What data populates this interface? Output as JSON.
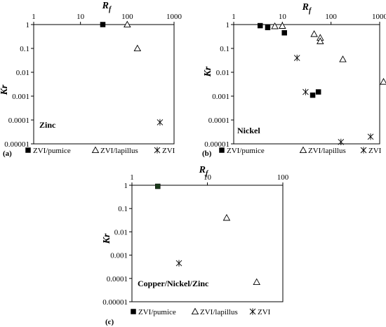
{
  "chart_data": [
    {
      "type": "scatter",
      "panel_label": "(a)",
      "metal_label": "Zinc",
      "xlabel": "R",
      "xlabel_sub": "f",
      "ylabel": "Kr",
      "x_scale": "log",
      "y_scale": "log",
      "xlim": [
        1,
        1000
      ],
      "ylim": [
        1e-05,
        1
      ],
      "x_ticks": [
        "1",
        "10",
        "100",
        "1000"
      ],
      "y_ticks": [
        "1",
        "0.1",
        "0.01",
        "0.001",
        "0.0001",
        "0.00001"
      ],
      "series": [
        {
          "name": "ZVI/pumice",
          "marker": "filled-square",
          "points": [
            [
              30,
              1
            ]
          ]
        },
        {
          "name": "ZVI/lapillus",
          "marker": "open-triangle",
          "points": [
            [
              100,
              1
            ],
            [
              165,
              0.1
            ]
          ]
        },
        {
          "name": "ZVI",
          "marker": "star",
          "points": [
            [
              500,
              8e-05
            ]
          ]
        }
      ]
    },
    {
      "type": "scatter",
      "panel_label": "(b)",
      "metal_label": "Nickel",
      "xlabel": "R",
      "xlabel_sub": "f",
      "ylabel": "Kr",
      "x_scale": "log",
      "y_scale": "log",
      "xlim": [
        1,
        1000
      ],
      "ylim": [
        1e-05,
        1
      ],
      "x_ticks": [
        "1",
        "10",
        "100",
        "1000"
      ],
      "y_ticks": [
        "1",
        "0.1",
        "0.01",
        "0.001",
        "0.0001",
        "0.00001"
      ],
      "series": [
        {
          "name": "ZVI/pumice",
          "marker": "filled-square",
          "points": [
            [
              3.5,
              0.9
            ],
            [
              5,
              0.75
            ],
            [
              11,
              0.45
            ],
            [
              42,
              0.0011
            ],
            [
              55,
              0.0015
            ]
          ]
        },
        {
          "name": "ZVI/lapillus",
          "marker": "open-triangle",
          "points": [
            [
              7,
              0.85
            ],
            [
              10,
              0.88
            ],
            [
              45,
              0.4
            ],
            [
              60,
              0.28
            ],
            [
              60,
              0.2
            ],
            [
              175,
              0.035
            ],
            [
              1200,
              0.004
            ]
          ]
        },
        {
          "name": "ZVI",
          "marker": "star",
          "points": [
            [
              20,
              0.04
            ],
            [
              30,
              0.0015
            ],
            [
              160,
              1.2e-05
            ],
            [
              650,
              2e-05
            ]
          ]
        }
      ]
    },
    {
      "type": "scatter",
      "panel_label": "(c)",
      "metal_label": "Copper/Nickel/Zinc",
      "xlabel": "R",
      "xlabel_sub": "f",
      "ylabel": "Kr",
      "x_scale": "log",
      "y_scale": "log",
      "xlim": [
        1,
        100
      ],
      "ylim": [
        1e-05,
        1
      ],
      "x_ticks": [
        "1",
        "10",
        "100"
      ],
      "y_ticks": [
        "1",
        "0.1",
        "0.01",
        "0.001",
        "0.0001",
        "0.00001"
      ],
      "series": [
        {
          "name": "ZVI/pumice",
          "marker": "filled-square",
          "points": [
            [
              2.2,
              0.9
            ]
          ]
        },
        {
          "name": "ZVI/lapillus",
          "marker": "open-triangle",
          "points": [
            [
              18,
              0.04
            ],
            [
              45,
              7e-05
            ]
          ]
        },
        {
          "name": "ZVI",
          "marker": "star",
          "points": [
            [
              4.2,
              0.00045
            ]
          ]
        }
      ]
    }
  ],
  "colors": {
    "marker": "#000000",
    "square_fill_c": "#1b3a1b"
  }
}
